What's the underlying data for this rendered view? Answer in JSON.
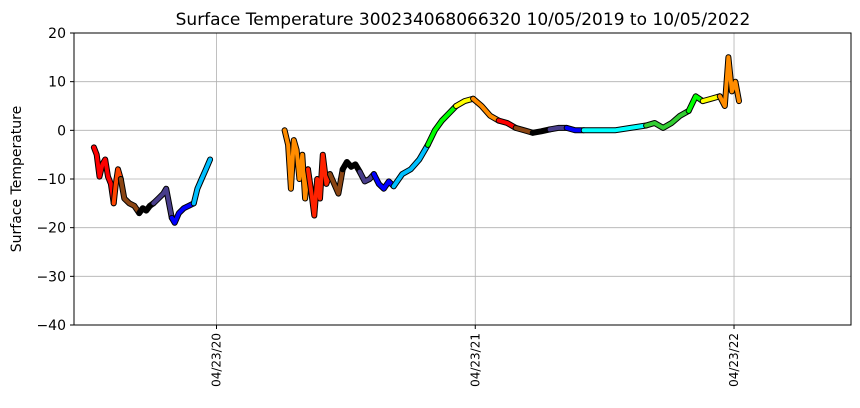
{
  "chart_data": {
    "type": "line",
    "title": "Surface Temperature 300234068066320  10/05/2019 to 10/05/2022",
    "xlabel": "",
    "ylabel": "Surface Temperature",
    "ylim": [
      -40,
      20
    ],
    "yticks": [
      "20",
      "10",
      "0",
      "−10",
      "−20",
      "−30",
      "−40"
    ],
    "ytick_values": [
      20,
      10,
      0,
      -10,
      -20,
      -30,
      -40
    ],
    "xlim": [
      "2019-10-05",
      "2022-10-05"
    ],
    "xticks": [
      "04/23/20",
      "04/23/21",
      "04/23/22"
    ],
    "xtick_values": [
      "2020-04-23",
      "2021-04-23",
      "2022-04-23"
    ],
    "grid": true,
    "segments": [
      {
        "color": "#ff0000",
        "points": [
          [
            "2019-11-02",
            -3.5
          ],
          [
            "2019-11-06",
            -5
          ],
          [
            "2019-11-10",
            -9.5
          ],
          [
            "2019-11-14",
            -7
          ],
          [
            "2019-11-18",
            -6
          ],
          [
            "2019-11-22",
            -9.5
          ],
          [
            "2019-11-26",
            -11
          ],
          [
            "2019-11-30",
            -15
          ]
        ]
      },
      {
        "color": "#ff4400",
        "points": [
          [
            "2019-11-30",
            -15
          ],
          [
            "2019-12-03",
            -11
          ],
          [
            "2019-12-06",
            -8
          ],
          [
            "2019-12-10",
            -10
          ]
        ]
      },
      {
        "color": "#8b4513",
        "points": [
          [
            "2019-12-10",
            -10
          ],
          [
            "2019-12-15",
            -14
          ],
          [
            "2019-12-22",
            -15
          ],
          [
            "2019-12-29",
            -15.5
          ],
          [
            "2020-01-05",
            -17
          ]
        ]
      },
      {
        "color": "#000000",
        "points": [
          [
            "2020-01-05",
            -17
          ],
          [
            "2020-01-10",
            -16
          ],
          [
            "2020-01-15",
            -16.5
          ],
          [
            "2020-01-20",
            -15.5
          ],
          [
            "2020-01-25",
            -15
          ]
        ]
      },
      {
        "color": "#483d8b",
        "points": [
          [
            "2020-01-25",
            -15
          ],
          [
            "2020-02-01",
            -14
          ],
          [
            "2020-02-08",
            -13
          ],
          [
            "2020-02-12",
            -12
          ],
          [
            "2020-02-16",
            -15
          ],
          [
            "2020-02-20",
            -18
          ]
        ]
      },
      {
        "color": "#0000ff",
        "points": [
          [
            "2020-02-20",
            -18
          ],
          [
            "2020-02-24",
            -19
          ],
          [
            "2020-03-01",
            -17
          ],
          [
            "2020-03-08",
            -16
          ],
          [
            "2020-03-15",
            -15.5
          ],
          [
            "2020-03-22",
            -15
          ]
        ]
      },
      {
        "color": "#00bfff",
        "points": [
          [
            "2020-03-22",
            -15
          ],
          [
            "2020-03-27",
            -12
          ],
          [
            "2020-04-02",
            -10
          ],
          [
            "2020-04-08",
            -8
          ],
          [
            "2020-04-14",
            -6
          ]
        ]
      },
      {
        "color": "#ff8c00",
        "points": [
          [
            "2020-07-28",
            0
          ],
          [
            "2020-08-02",
            -3
          ],
          [
            "2020-08-06",
            -12
          ],
          [
            "2020-08-10",
            -2
          ],
          [
            "2020-08-14",
            -4
          ],
          [
            "2020-08-18",
            -10
          ],
          [
            "2020-08-22",
            -5
          ],
          [
            "2020-08-26",
            -14
          ],
          [
            "2020-08-30",
            -8
          ]
        ]
      },
      {
        "color": "#ff2200",
        "points": [
          [
            "2020-08-30",
            -8
          ],
          [
            "2020-09-04",
            -13
          ],
          [
            "2020-09-08",
            -17.5
          ],
          [
            "2020-09-12",
            -10
          ],
          [
            "2020-09-16",
            -14
          ],
          [
            "2020-09-20",
            -5
          ],
          [
            "2020-09-25",
            -11
          ],
          [
            "2020-09-30",
            -9
          ]
        ]
      },
      {
        "color": "#8b4513",
        "points": [
          [
            "2020-09-30",
            -9
          ],
          [
            "2020-10-06",
            -11
          ],
          [
            "2020-10-12",
            -13
          ],
          [
            "2020-10-18",
            -8
          ]
        ]
      },
      {
        "color": "#000000",
        "points": [
          [
            "2020-10-18",
            -8
          ],
          [
            "2020-10-24",
            -6.5
          ],
          [
            "2020-10-30",
            -7.5
          ],
          [
            "2020-11-05",
            -7
          ],
          [
            "2020-11-11",
            -8.5
          ]
        ]
      },
      {
        "color": "#483d8b",
        "points": [
          [
            "2020-11-11",
            -8.5
          ],
          [
            "2020-11-18",
            -10.5
          ],
          [
            "2020-11-25",
            -10
          ],
          [
            "2020-12-01",
            -9
          ]
        ]
      },
      {
        "color": "#0000ff",
        "points": [
          [
            "2020-12-01",
            -9
          ],
          [
            "2020-12-08",
            -11
          ],
          [
            "2020-12-15",
            -12
          ],
          [
            "2020-12-22",
            -10.5
          ],
          [
            "2020-12-29",
            -11.5
          ]
        ]
      },
      {
        "color": "#00bfff",
        "points": [
          [
            "2020-12-29",
            -11.5
          ],
          [
            "2021-01-10",
            -9
          ],
          [
            "2021-01-22",
            -8
          ],
          [
            "2021-02-03",
            -6
          ],
          [
            "2021-02-15",
            -3
          ]
        ]
      },
      {
        "color": "#00ff00",
        "points": [
          [
            "2021-02-15",
            -3
          ],
          [
            "2021-02-25",
            0
          ],
          [
            "2021-03-07",
            2
          ],
          [
            "2021-03-17",
            3.5
          ],
          [
            "2021-03-27",
            5
          ]
        ]
      },
      {
        "color": "#ffff00",
        "points": [
          [
            "2021-03-27",
            5
          ],
          [
            "2021-04-08",
            6
          ],
          [
            "2021-04-20",
            6.5
          ]
        ]
      },
      {
        "color": "#ff8c00",
        "points": [
          [
            "2021-04-20",
            6.5
          ],
          [
            "2021-05-02",
            5
          ],
          [
            "2021-05-14",
            3
          ],
          [
            "2021-05-26",
            2
          ]
        ]
      },
      {
        "color": "#ff0000",
        "points": [
          [
            "2021-05-26",
            2
          ],
          [
            "2021-06-07",
            1.5
          ],
          [
            "2021-06-19",
            0.5
          ]
        ]
      },
      {
        "color": "#8b4513",
        "points": [
          [
            "2021-06-19",
            0.5
          ],
          [
            "2021-07-01",
            0
          ],
          [
            "2021-07-13",
            -0.5
          ]
        ]
      },
      {
        "color": "#000000",
        "points": [
          [
            "2021-07-13",
            -0.5
          ],
          [
            "2021-07-25",
            -0.2
          ],
          [
            "2021-08-06",
            0.2
          ]
        ]
      },
      {
        "color": "#483d8b",
        "points": [
          [
            "2021-08-06",
            0.2
          ],
          [
            "2021-08-18",
            0.5
          ],
          [
            "2021-08-30",
            0.5
          ]
        ]
      },
      {
        "color": "#0000ff",
        "points": [
          [
            "2021-08-30",
            0.5
          ],
          [
            "2021-09-11",
            0
          ],
          [
            "2021-09-23",
            0
          ]
        ]
      },
      {
        "color": "#00ffff",
        "points": [
          [
            "2021-09-23",
            0
          ],
          [
            "2021-10-15",
            0
          ],
          [
            "2021-11-06",
            0
          ],
          [
            "2021-11-28",
            0.5
          ],
          [
            "2021-12-20",
            1
          ]
        ]
      },
      {
        "color": "#32cd32",
        "points": [
          [
            "2021-12-20",
            1
          ],
          [
            "2022-01-01",
            1.5
          ],
          [
            "2022-01-13",
            0.5
          ],
          [
            "2022-01-25",
            1.5
          ],
          [
            "2022-02-06",
            3
          ],
          [
            "2022-02-18",
            4
          ]
        ]
      },
      {
        "color": "#00ff00",
        "points": [
          [
            "2022-02-18",
            4
          ],
          [
            "2022-02-28",
            7
          ],
          [
            "2022-03-10",
            6
          ]
        ]
      },
      {
        "color": "#ffff00",
        "points": [
          [
            "2022-03-10",
            6
          ],
          [
            "2022-03-22",
            6.5
          ],
          [
            "2022-04-03",
            7
          ]
        ]
      },
      {
        "color": "#ff8c00",
        "points": [
          [
            "2022-04-03",
            7
          ],
          [
            "2022-04-10",
            5
          ],
          [
            "2022-04-15",
            15
          ],
          [
            "2022-04-20",
            8
          ],
          [
            "2022-04-25",
            10
          ],
          [
            "2022-04-30",
            6
          ]
        ]
      }
    ]
  }
}
